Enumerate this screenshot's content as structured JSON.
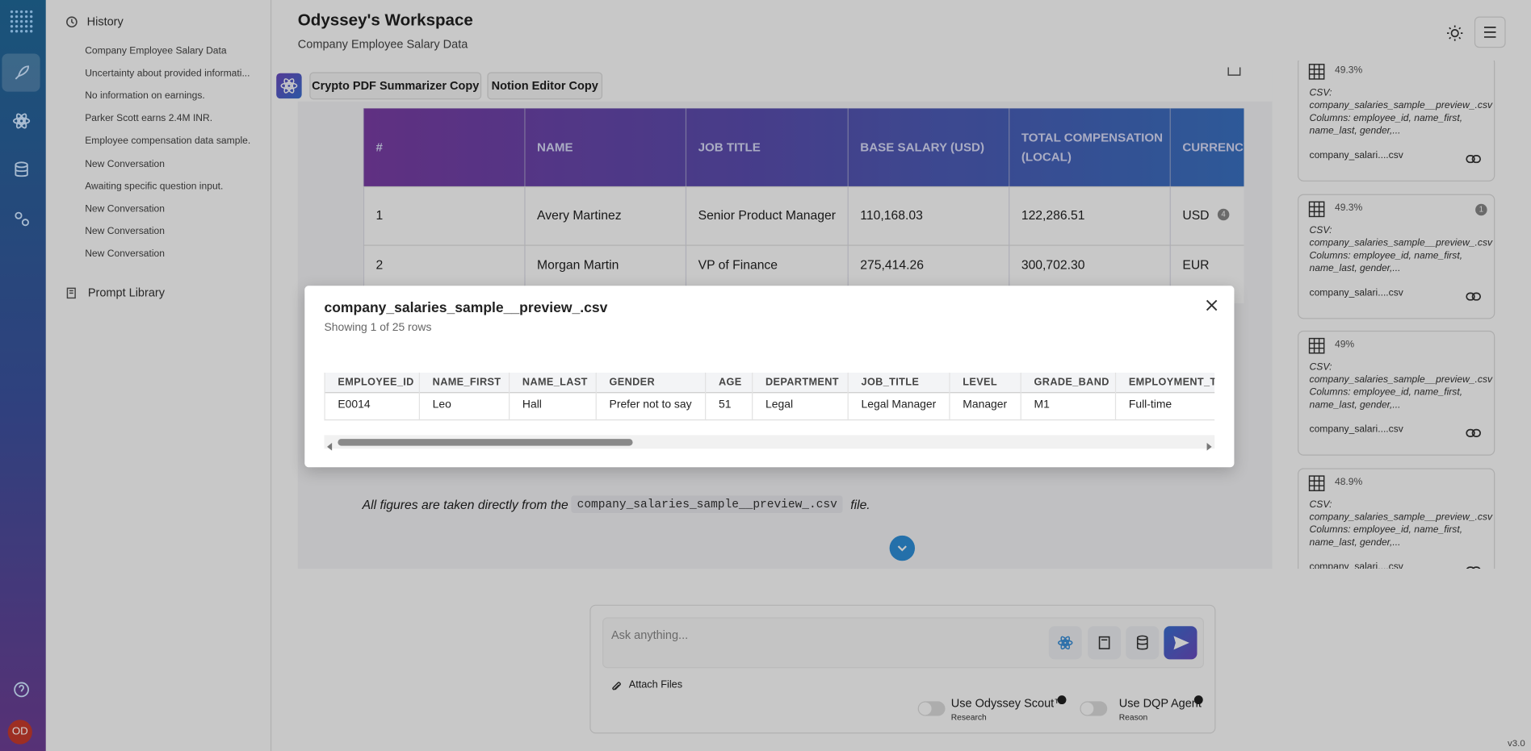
{
  "sidebar": {
    "history_title": "History",
    "history": [
      "Company Employee Salary Data",
      "Uncertainty about provided informati...",
      "No information on earnings.",
      "Parker Scott earns 2.4M INR.",
      "Employee compensation data sample.",
      "New Conversation",
      "Awaiting specific question input.",
      "New Conversation",
      "New Conversation",
      "New Conversation"
    ],
    "prompt_library": "Prompt Library",
    "avatar": "OD"
  },
  "header": {
    "title": "Odyssey's Workspace",
    "subtitle": "Company Employee Salary Data"
  },
  "tabs": [
    "Crypto PDF Summarizer Copy",
    "Notion Editor Copy"
  ],
  "answer_table": {
    "columns": [
      "#",
      "NAME",
      "JOB TITLE",
      "BASE SALARY (USD)",
      "TOTAL COMPENSATION (LOCAL)",
      "CURRENCY"
    ],
    "rows": [
      [
        "1",
        "Avery Martinez",
        "Senior Product Manager",
        "110,168.03",
        "122,286.51",
        "USD"
      ],
      [
        "2",
        "Morgan Martin",
        "VP of Finance",
        "275,414.26",
        "300,702.30",
        "EUR"
      ]
    ],
    "citation": "4"
  },
  "footnote": {
    "before": "All figures are taken directly from the",
    "code": "company_salaries_sample__preview_.csv",
    "after": "file."
  },
  "sources": [
    {
      "score": "49.3%",
      "text": "CSV: company_salaries_sample__preview_.csv Columns: employee_id, name_first, name_last, gender,...",
      "file": "company_salari....csv"
    },
    {
      "score": "49.3%",
      "badge": "1",
      "text": "CSV: company_salaries_sample__preview_.csv Columns: employee_id, name_first, name_last, gender,...",
      "file": "company_salari....csv"
    },
    {
      "score": "49%",
      "text": "CSV: company_salaries_sample__preview_.csv Columns: employee_id, name_first, name_last, gender,...",
      "file": "company_salari....csv"
    },
    {
      "score": "48.9%",
      "text": "CSV: company_salaries_sample__preview_.csv Columns: employee_id, name_first, name_last, gender,...",
      "file": "company_salari....csv"
    }
  ],
  "modal": {
    "title": "company_salaries_sample__preview_.csv",
    "subtitle": "Showing 1 of 25 rows",
    "columns": [
      "EMPLOYEE_ID",
      "NAME_FIRST",
      "NAME_LAST",
      "GENDER",
      "AGE",
      "DEPARTMENT",
      "JOB_TITLE",
      "LEVEL",
      "GRADE_BAND",
      "EMPLOYMENT_TY"
    ],
    "rows": [
      [
        "E0014",
        "Leo",
        "Hall",
        "Prefer not to say",
        "51",
        "Legal",
        "Legal Manager",
        "Manager",
        "M1",
        "Full-time"
      ]
    ]
  },
  "composer": {
    "placeholder": "Ask anything...",
    "attach": "Attach Files",
    "toggles": [
      {
        "label": "Use Odyssey Scout™",
        "sub": "Research"
      },
      {
        "label": "Use DQP Agent",
        "sub": "Reason"
      }
    ]
  },
  "version": "v3.0"
}
